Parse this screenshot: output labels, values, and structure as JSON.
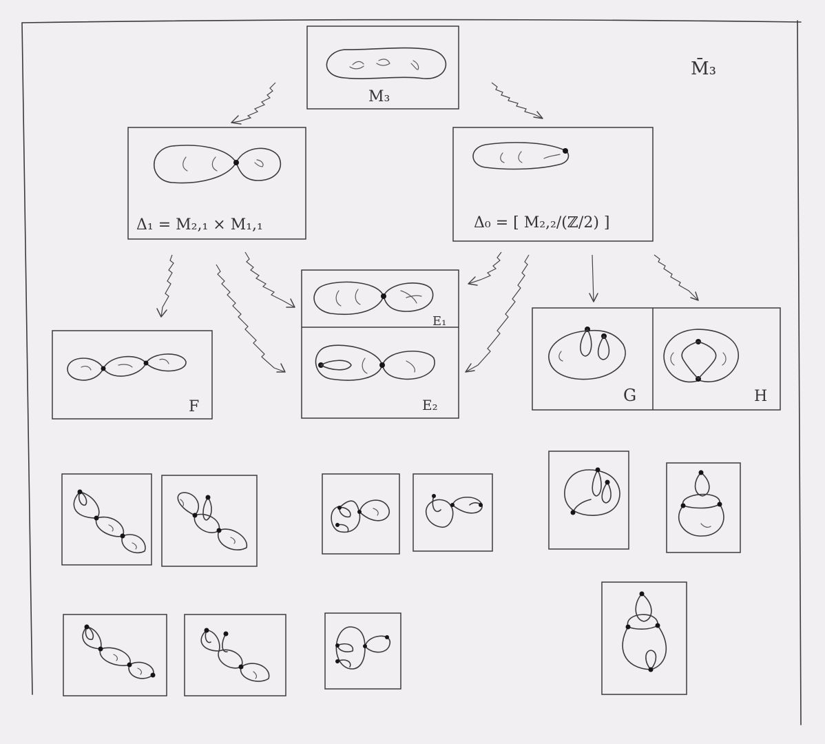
{
  "space_label": "M̄₃",
  "top": {
    "label": "M₃"
  },
  "delta1": {
    "label": "Δ₁ = M₂,₁ × M₁,₁"
  },
  "delta0": {
    "label": "Δ₀ = [ M₂,₂/(ℤ/2) ]"
  },
  "strata": {
    "E1": "E₁",
    "E2": "E₂",
    "F": "F",
    "G": "G",
    "H": "H"
  }
}
